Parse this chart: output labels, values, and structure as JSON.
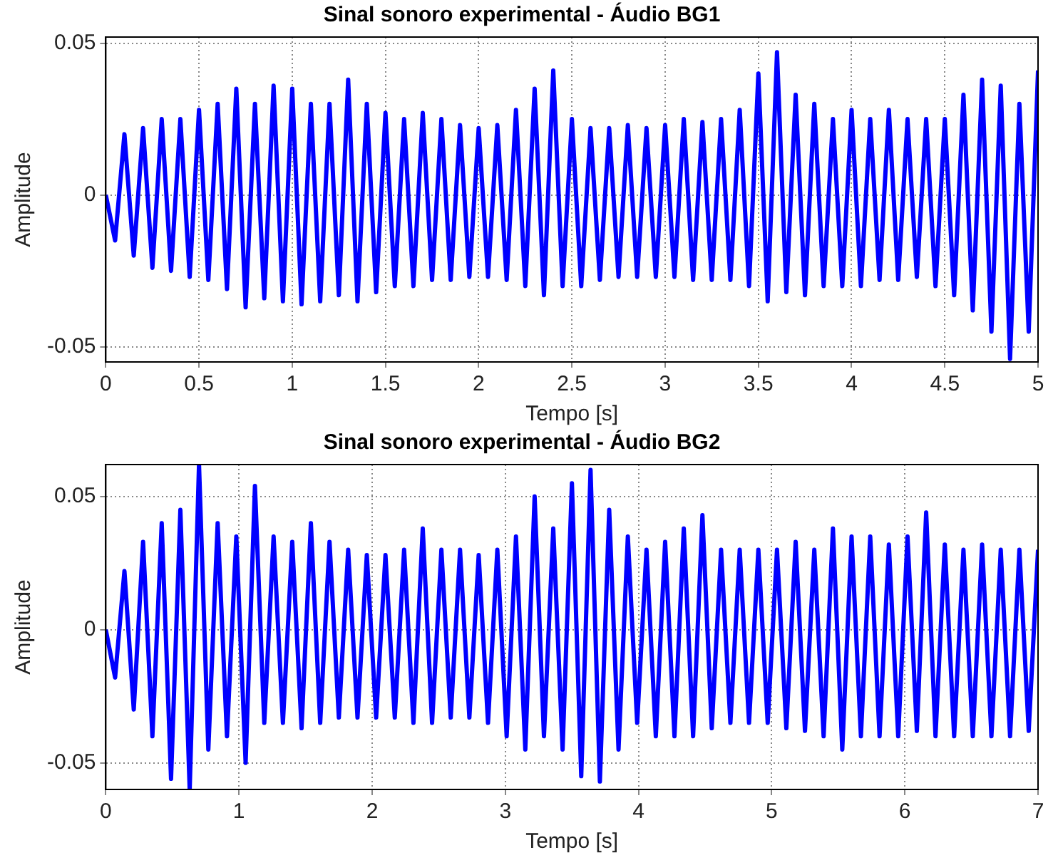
{
  "chart_data": [
    {
      "type": "line",
      "title": "Sinal sonoro experimental - Áudio BG1",
      "xlabel": "Tempo [s]",
      "ylabel": "Amplitude",
      "xlim": [
        0,
        5
      ],
      "xticks": [
        0,
        0.5,
        1,
        1.5,
        2,
        2.5,
        3,
        3.5,
        4,
        4.5,
        5
      ],
      "ylim": [
        -0.055,
        0.052
      ],
      "yticks": [
        -0.05,
        0,
        0.05
      ],
      "grid": true,
      "marker": "none",
      "line_style": "solid",
      "x": [
        0,
        0.05,
        0.1,
        0.15,
        0.2,
        0.25,
        0.3,
        0.35,
        0.4,
        0.45,
        0.5,
        0.55,
        0.6,
        0.65,
        0.7,
        0.75,
        0.8,
        0.85,
        0.9,
        0.95,
        1,
        1.05,
        1.1,
        1.15,
        1.2,
        1.25,
        1.3,
        1.35,
        1.4,
        1.45,
        1.5,
        1.55,
        1.6,
        1.65,
        1.7,
        1.75,
        1.8,
        1.85,
        1.9,
        1.95,
        2,
        2.05,
        2.1,
        2.15,
        2.2,
        2.25,
        2.3,
        2.35,
        2.4,
        2.45,
        2.5,
        2.55,
        2.6,
        2.65,
        2.7,
        2.75,
        2.8,
        2.85,
        2.9,
        2.95,
        3,
        3.05,
        3.1,
        3.15,
        3.2,
        3.25,
        3.3,
        3.35,
        3.4,
        3.45,
        3.5,
        3.55,
        3.6,
        3.65,
        3.7,
        3.75,
        3.8,
        3.85,
        3.9,
        3.95,
        4,
        4.05,
        4.1,
        4.15,
        4.2,
        4.25,
        4.3,
        4.35,
        4.4,
        4.45,
        4.5,
        4.55,
        4.6,
        4.65,
        4.7,
        4.75,
        4.8,
        4.85,
        4.9,
        4.95,
        5
      ],
      "series": [
        {
          "color": "#0000ff",
          "values": [
            0,
            -0.015,
            0.02,
            -0.02,
            0.022,
            -0.024,
            0.025,
            -0.025,
            0.025,
            -0.027,
            0.028,
            -0.028,
            0.03,
            -0.031,
            0.035,
            -0.037,
            0.03,
            -0.034,
            0.036,
            -0.035,
            0.035,
            -0.036,
            0.03,
            -0.035,
            0.03,
            -0.033,
            0.038,
            -0.035,
            0.03,
            -0.032,
            0.027,
            -0.03,
            0.025,
            -0.03,
            0.027,
            -0.028,
            0.025,
            -0.028,
            0.023,
            -0.027,
            0.022,
            -0.027,
            0.023,
            -0.028,
            0.028,
            -0.03,
            0.035,
            -0.033,
            0.041,
            -0.03,
            0.025,
            -0.03,
            0.022,
            -0.028,
            0.022,
            -0.027,
            0.023,
            -0.027,
            0.022,
            -0.027,
            0.023,
            -0.027,
            0.025,
            -0.028,
            0.024,
            -0.028,
            0.025,
            -0.028,
            0.028,
            -0.03,
            0.04,
            -0.035,
            0.047,
            -0.032,
            0.033,
            -0.033,
            0.03,
            -0.03,
            0.025,
            -0.03,
            0.028,
            -0.03,
            0.025,
            -0.028,
            0.028,
            -0.028,
            0.025,
            -0.027,
            0.025,
            -0.03,
            0.025,
            -0.033,
            0.033,
            -0.038,
            0.038,
            -0.045,
            0.036,
            -0.054,
            0.03,
            -0.045,
            0.041
          ]
        }
      ]
    },
    {
      "type": "line",
      "title": "Sinal sonoro experimental - Áudio BG2",
      "xlabel": "Tempo [s]",
      "ylabel": "Amplitude",
      "xlim": [
        0,
        7
      ],
      "xticks": [
        0,
        1,
        2,
        3,
        4,
        5,
        6,
        7
      ],
      "ylim": [
        -0.06,
        0.062
      ],
      "yticks": [
        -0.05,
        0,
        0.05
      ],
      "grid": true,
      "marker": "none",
      "line_style": "solid",
      "x": [
        0,
        0.07,
        0.14,
        0.21,
        0.28,
        0.35,
        0.42,
        0.49,
        0.56,
        0.63,
        0.7,
        0.77,
        0.84,
        0.91,
        0.98,
        1.05,
        1.12,
        1.19,
        1.26,
        1.33,
        1.4,
        1.47,
        1.54,
        1.61,
        1.68,
        1.75,
        1.82,
        1.89,
        1.96,
        2.03,
        2.1,
        2.17,
        2.24,
        2.31,
        2.38,
        2.45,
        2.52,
        2.59,
        2.66,
        2.73,
        2.8,
        2.87,
        2.94,
        3.01,
        3.08,
        3.15,
        3.22,
        3.29,
        3.36,
        3.43,
        3.5,
        3.57,
        3.64,
        3.71,
        3.78,
        3.85,
        3.92,
        3.99,
        4.06,
        4.13,
        4.2,
        4.27,
        4.34,
        4.41,
        4.48,
        4.55,
        4.62,
        4.69,
        4.76,
        4.83,
        4.9,
        4.97,
        5.04,
        5.11,
        5.18,
        5.25,
        5.32,
        5.39,
        5.46,
        5.53,
        5.6,
        5.67,
        5.74,
        5.81,
        5.88,
        5.95,
        6.02,
        6.09,
        6.16,
        6.23,
        6.3,
        6.37,
        6.44,
        6.51,
        6.58,
        6.65,
        6.72,
        6.79,
        6.86,
        6.93,
        7
      ],
      "series": [
        {
          "color": "#0000ff",
          "values": [
            0,
            -0.018,
            0.022,
            -0.03,
            0.033,
            -0.04,
            0.04,
            -0.056,
            0.045,
            -0.06,
            0.062,
            -0.045,
            0.04,
            -0.04,
            0.035,
            -0.05,
            0.054,
            -0.035,
            0.035,
            -0.035,
            0.033,
            -0.037,
            0.04,
            -0.035,
            0.033,
            -0.033,
            0.03,
            -0.033,
            0.028,
            -0.033,
            0.028,
            -0.033,
            0.03,
            -0.035,
            0.038,
            -0.035,
            0.03,
            -0.033,
            0.03,
            -0.033,
            0.028,
            -0.035,
            0.03,
            -0.04,
            0.035,
            -0.045,
            0.05,
            -0.04,
            0.038,
            -0.045,
            0.055,
            -0.055,
            0.06,
            -0.057,
            0.045,
            -0.045,
            0.035,
            -0.035,
            0.03,
            -0.04,
            0.033,
            -0.04,
            0.038,
            -0.04,
            0.043,
            -0.037,
            0.03,
            -0.035,
            0.03,
            -0.035,
            0.03,
            -0.035,
            0.03,
            -0.037,
            0.033,
            -0.038,
            0.03,
            -0.04,
            0.038,
            -0.045,
            0.035,
            -0.04,
            0.035,
            -0.04,
            0.032,
            -0.04,
            0.035,
            -0.038,
            0.044,
            -0.04,
            0.032,
            -0.04,
            0.03,
            -0.04,
            0.032,
            -0.04,
            0.03,
            -0.04,
            0.03,
            -0.038,
            0.03
          ]
        }
      ]
    }
  ]
}
